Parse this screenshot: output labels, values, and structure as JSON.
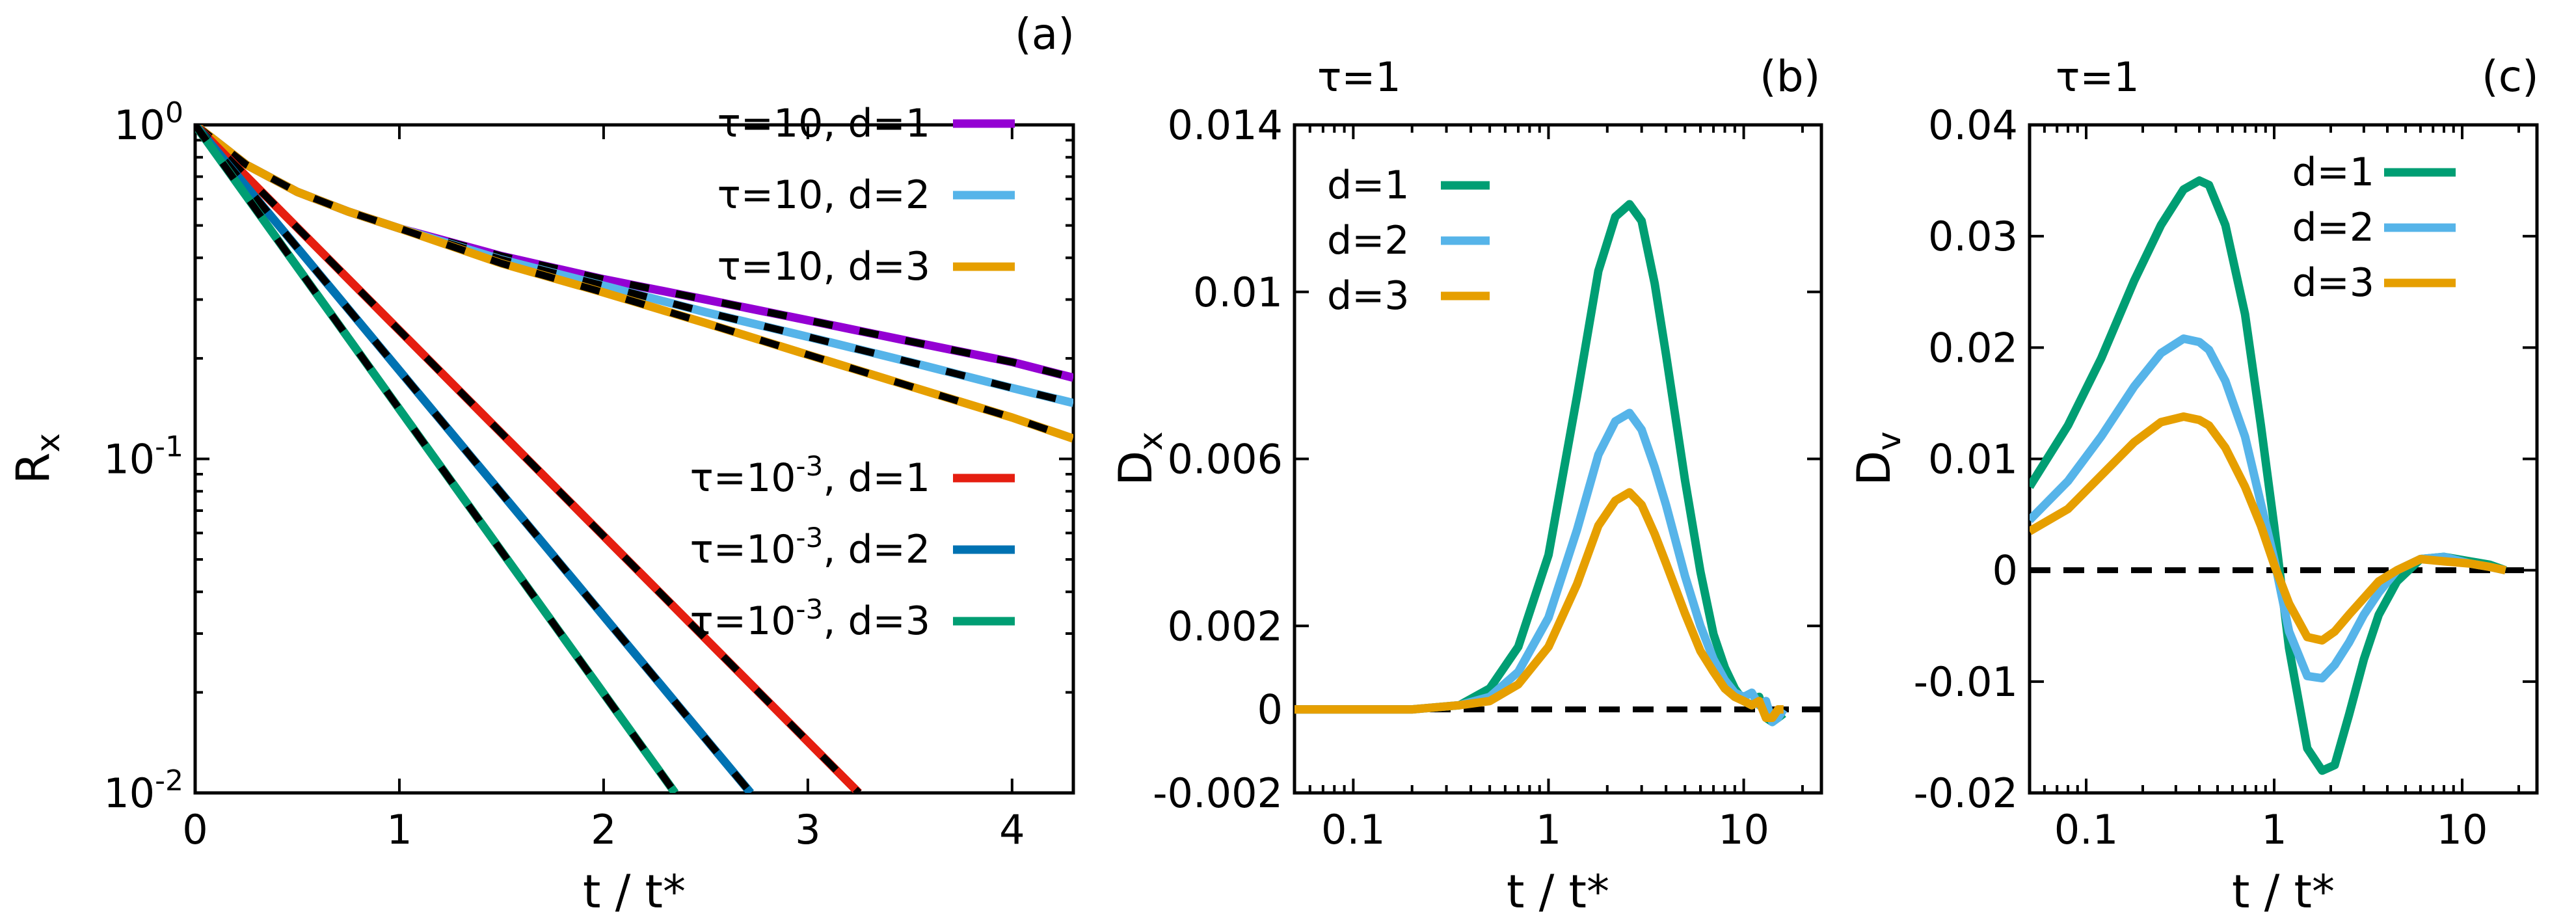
{
  "chart_data": [
    {
      "panel": "(a)",
      "type": "line",
      "xlabel": "t / t*",
      "ylabel": "R",
      "ylabel_sub": "x",
      "xscale": "linear",
      "yscale": "log",
      "xlim": [
        0,
        4.3
      ],
      "ylim": [
        0.01,
        1
      ],
      "xticks": [
        {
          "value": 0,
          "label": "0"
        },
        {
          "value": 1,
          "label": "1"
        },
        {
          "value": 2,
          "label": "2"
        },
        {
          "value": 3,
          "label": "3"
        },
        {
          "value": 4,
          "label": "4"
        }
      ],
      "yticks": [
        {
          "value": 1,
          "base": "10",
          "exp": "0"
        },
        {
          "value": 0.1,
          "base": "10",
          "exp": "-1"
        },
        {
          "value": 0.01,
          "base": "10",
          "exp": "-2"
        }
      ],
      "legend": [
        {
          "pre": "τ=10, d=1",
          "exp": "",
          "post": "",
          "color": "#9400d3"
        },
        {
          "pre": "τ=10, d=2",
          "exp": "",
          "post": "",
          "color": "#56b4e9"
        },
        {
          "pre": "τ=10, d=3",
          "exp": "",
          "post": "",
          "color": "#e69f00"
        },
        {
          "pre": "τ=10",
          "exp": "-3",
          "post": ", d=1",
          "color": "#e51e10"
        },
        {
          "pre": "τ=10",
          "exp": "-3",
          "post": ", d=2",
          "color": "#0072b2"
        },
        {
          "pre": "τ=10",
          "exp": "-3",
          "post": ", d=3",
          "color": "#009e73"
        }
      ],
      "legend_placement": "top-right (upper group) and center-right (lower group)",
      "fit_style": "black dashed overlay",
      "series": [
        {
          "name": "τ=10, d=1",
          "color": "#9400d3",
          "x": [
            0,
            0.25,
            0.5,
            0.75,
            1,
            1.5,
            2,
            2.5,
            3,
            3.5,
            4,
            4.3
          ],
          "y": [
            1,
            0.76,
            0.63,
            0.55,
            0.49,
            0.405,
            0.345,
            0.3,
            0.26,
            0.225,
            0.195,
            0.175
          ]
        },
        {
          "name": "τ=10, d=2",
          "color": "#56b4e9",
          "x": [
            0,
            0.25,
            0.5,
            0.75,
            1,
            1.5,
            2,
            2.5,
            3,
            3.5,
            4,
            4.3
          ],
          "y": [
            1,
            0.76,
            0.63,
            0.55,
            0.49,
            0.395,
            0.33,
            0.275,
            0.232,
            0.195,
            0.163,
            0.147
          ]
        },
        {
          "name": "τ=10, d=3",
          "color": "#e69f00",
          "x": [
            0,
            0.25,
            0.5,
            0.75,
            1,
            1.5,
            2,
            2.5,
            3,
            3.5,
            4,
            4.3
          ],
          "y": [
            1,
            0.76,
            0.63,
            0.55,
            0.49,
            0.385,
            0.315,
            0.255,
            0.205,
            0.165,
            0.133,
            0.115
          ]
        },
        {
          "name": "τ=10^-3, d=1",
          "color": "#e51e10",
          "x": [
            0,
            3.25
          ],
          "y": [
            1,
            0.01
          ]
        },
        {
          "name": "τ=10^-3, d=2",
          "color": "#0072b2",
          "x": [
            0,
            2.72
          ],
          "y": [
            1,
            0.01
          ]
        },
        {
          "name": "τ=10^-3, d=3",
          "color": "#009e73",
          "x": [
            0,
            2.35
          ],
          "y": [
            1,
            0.01
          ]
        }
      ]
    },
    {
      "panel": "(b)",
      "header": "τ=1",
      "type": "line",
      "xlabel": "t / t*",
      "ylabel": "D",
      "ylabel_sub": "x",
      "xscale": "log",
      "yscale": "linear",
      "xlim": [
        0.05,
        25
      ],
      "ylim": [
        -0.002,
        0.014
      ],
      "xticks": [
        {
          "value": 0.1,
          "label": "0.1"
        },
        {
          "value": 1,
          "label": "1"
        },
        {
          "value": 10,
          "label": "10"
        }
      ],
      "yticks": [
        {
          "value": 0.014,
          "label": "0.014"
        },
        {
          "value": 0.01,
          "label": "0.01"
        },
        {
          "value": 0.006,
          "label": "0.006"
        },
        {
          "value": 0.002,
          "label": "0.002"
        },
        {
          "value": 0,
          "label": "0"
        },
        {
          "value": -0.002,
          "label": "-0.002"
        }
      ],
      "legend_placement": "top-left",
      "zero_line": "black dashed",
      "series": [
        {
          "name": "d=1",
          "color": "#009e73",
          "x": [
            0.05,
            0.2,
            0.35,
            0.5,
            0.7,
            1.0,
            1.4,
            1.8,
            2.2,
            2.6,
            3.0,
            3.5,
            4.0,
            5.0,
            6.0,
            7.0,
            8.0,
            9.0,
            10.0,
            11.0,
            12.0,
            13.0,
            14.0,
            15.0,
            16.0
          ],
          "y": [
            0,
            0,
            0.0001,
            0.0005,
            0.0015,
            0.0037,
            0.0075,
            0.0105,
            0.0118,
            0.0121,
            0.0117,
            0.0102,
            0.0085,
            0.0055,
            0.0033,
            0.0018,
            0.001,
            0.0005,
            0.0002,
            0.0001,
            0.0003,
            -0.0002,
            -0.0003,
            -0.0002,
            -0.0001
          ]
        },
        {
          "name": "d=2",
          "color": "#56b4e9",
          "x": [
            0.05,
            0.2,
            0.35,
            0.5,
            0.7,
            1.0,
            1.4,
            1.8,
            2.2,
            2.6,
            3.0,
            3.5,
            4.0,
            5.0,
            6.0,
            7.0,
            8.0,
            9.0,
            10.0,
            11.0,
            12.0,
            13.0,
            14.0,
            15.0,
            16.0
          ],
          "y": [
            0,
            0,
            0.0001,
            0.0003,
            0.0009,
            0.0022,
            0.0043,
            0.0061,
            0.0069,
            0.0071,
            0.0067,
            0.0058,
            0.0049,
            0.0032,
            0.002,
            0.0012,
            0.0007,
            0.0004,
            0.0003,
            0.0004,
            0.0001,
            0.0002,
            -0.0003,
            -0.0002,
            0
          ]
        },
        {
          "name": "d=3",
          "color": "#e69f00",
          "x": [
            0.05,
            0.2,
            0.35,
            0.5,
            0.7,
            1.0,
            1.4,
            1.8,
            2.2,
            2.6,
            3.0,
            3.5,
            4.0,
            5.0,
            6.0,
            7.0,
            8.0,
            9.0,
            10.0,
            11.0,
            12.0,
            13.0,
            14.0,
            15.0,
            16.0
          ],
          "y": [
            0,
            0,
            0.0001,
            0.0002,
            0.0006,
            0.0015,
            0.003,
            0.0044,
            0.005,
            0.0052,
            0.0049,
            0.0042,
            0.0035,
            0.0023,
            0.0014,
            0.0009,
            0.0005,
            0.0003,
            0.0002,
            0.0001,
            0.0002,
            -0.0002,
            -0.0002,
            0,
            0
          ]
        }
      ]
    },
    {
      "panel": "(c)",
      "header": "τ=1",
      "type": "line",
      "xlabel": "t / t*",
      "ylabel": "D",
      "ylabel_sub": "v",
      "xscale": "log",
      "yscale": "linear",
      "xlim": [
        0.05,
        25
      ],
      "ylim": [
        -0.02,
        0.04
      ],
      "xticks": [
        {
          "value": 0.1,
          "label": "0.1"
        },
        {
          "value": 1,
          "label": "1"
        },
        {
          "value": 10,
          "label": "10"
        }
      ],
      "yticks": [
        {
          "value": 0.04,
          "label": "0.04"
        },
        {
          "value": 0.03,
          "label": "0.03"
        },
        {
          "value": 0.02,
          "label": "0.02"
        },
        {
          "value": 0.01,
          "label": "0.01"
        },
        {
          "value": 0,
          "label": "0"
        },
        {
          "value": -0.01,
          "label": "-0.01"
        },
        {
          "value": -0.02,
          "label": "-0.02"
        }
      ],
      "legend_placement": "top-right",
      "zero_line": "black dashed",
      "series": [
        {
          "name": "d=1",
          "color": "#009e73",
          "x": [
            0.05,
            0.08,
            0.12,
            0.18,
            0.25,
            0.33,
            0.4,
            0.45,
            0.55,
            0.7,
            0.85,
            1.0,
            1.2,
            1.5,
            1.8,
            2.1,
            2.5,
            3.0,
            3.6,
            4.5,
            6.0,
            8.0,
            11.0,
            14.0,
            17.0
          ],
          "y": [
            0.0075,
            0.013,
            0.019,
            0.026,
            0.031,
            0.0342,
            0.035,
            0.0346,
            0.031,
            0.023,
            0.013,
            0.004,
            -0.007,
            -0.016,
            -0.018,
            -0.0175,
            -0.013,
            -0.008,
            -0.004,
            -0.001,
            0.001,
            0.0012,
            0.0008,
            0.0005,
            0
          ]
        },
        {
          "name": "d=2",
          "color": "#56b4e9",
          "x": [
            0.05,
            0.08,
            0.12,
            0.18,
            0.25,
            0.33,
            0.4,
            0.45,
            0.55,
            0.7,
            0.85,
            1.0,
            1.2,
            1.5,
            1.8,
            2.1,
            2.5,
            3.0,
            3.6,
            4.5,
            6.0,
            8.0,
            11.0,
            14.0,
            17.0
          ],
          "y": [
            0.0045,
            0.008,
            0.012,
            0.0165,
            0.0195,
            0.0208,
            0.0205,
            0.0198,
            0.017,
            0.012,
            0.006,
            0.001,
            -0.0055,
            -0.0095,
            -0.0097,
            -0.0085,
            -0.0065,
            -0.004,
            -0.002,
            0,
            0.001,
            0.0012,
            0.0006,
            0.0003,
            0
          ]
        },
        {
          "name": "d=3",
          "color": "#e69f00",
          "x": [
            0.05,
            0.08,
            0.12,
            0.18,
            0.25,
            0.33,
            0.4,
            0.45,
            0.55,
            0.7,
            0.85,
            1.0,
            1.2,
            1.5,
            1.8,
            2.1,
            2.5,
            3.0,
            3.6,
            4.5,
            6.0,
            8.0,
            11.0,
            14.0,
            17.0
          ],
          "y": [
            0.0035,
            0.0055,
            0.0085,
            0.0115,
            0.0133,
            0.0138,
            0.0135,
            0.013,
            0.011,
            0.0075,
            0.004,
            0.0005,
            -0.003,
            -0.006,
            -0.0063,
            -0.0055,
            -0.004,
            -0.0025,
            -0.001,
            0,
            0.001,
            0.0008,
            0.0006,
            0.0003,
            0
          ]
        }
      ]
    }
  ],
  "legend_b": [
    "d=1",
    "d=2",
    "d=3"
  ],
  "legend_c": [
    "d=1",
    "d=2",
    "d=3"
  ]
}
